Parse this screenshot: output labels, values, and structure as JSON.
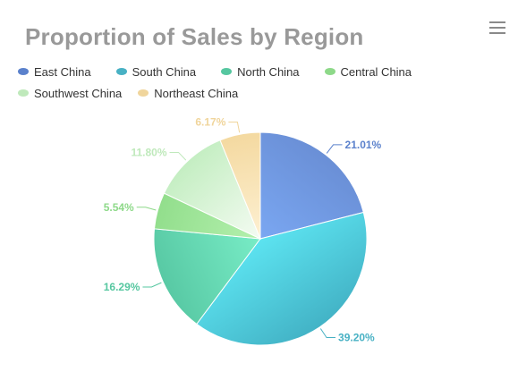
{
  "menu_icon": "hamburger-menu-icon",
  "chart_data": {
    "type": "pie",
    "title": "Proportion of Sales by Region",
    "legend_position": "top-left",
    "unit": "%",
    "categories": [
      "East China",
      "South China",
      "North China",
      "Central China",
      "Southwest China",
      "Northeast China"
    ],
    "values": [
      21.01,
      39.2,
      16.29,
      5.54,
      11.8,
      6.17
    ],
    "labels": [
      "21.01%",
      "39.20%",
      "16.29%",
      "5.54%",
      "11.80%",
      "6.17%"
    ],
    "colors": {
      "East China": [
        "#6a8fd6",
        "#7aa7f2"
      ],
      "South China": [
        "#43b3c6",
        "#5ce3f0"
      ],
      "North China": [
        "#58c9a4",
        "#78ecc6"
      ],
      "Central China": [
        "#92de8c",
        "#b4f0ae"
      ],
      "Southwest China": [
        "#c4eec2",
        "#f4fbf2"
      ],
      "Northeast China": [
        "#f4d9a0",
        "#fdf0d2"
      ]
    },
    "label_colors": {
      "East China": "#5b81cc",
      "South China": "#48b1c4",
      "North China": "#56c7a0",
      "Central China": "#8ed989",
      "Southwest China": "#bfe9bb",
      "Northeast China": "#f0d59c"
    }
  }
}
